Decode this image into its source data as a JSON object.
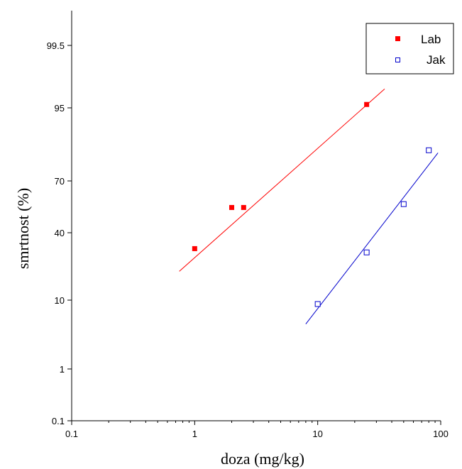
{
  "chart_data": {
    "type": "scatter",
    "title": "",
    "xlabel": "doza (mg/kg)",
    "ylabel": "smrtnost (%)",
    "x_scale": "log",
    "y_scale": "probit",
    "xlim": [
      0.1,
      100
    ],
    "ylim": [
      0.1,
      99.9
    ],
    "x_ticks": [
      {
        "value": 0.1,
        "label": "0.1"
      },
      {
        "value": 1,
        "label": "1"
      },
      {
        "value": 10,
        "label": "10"
      },
      {
        "value": 100,
        "label": "100"
      }
    ],
    "y_ticks": [
      {
        "value": 0.1,
        "label": "0.1"
      },
      {
        "value": 1,
        "label": "1"
      },
      {
        "value": 10,
        "label": "10"
      },
      {
        "value": 40,
        "label": "40"
      },
      {
        "value": 70,
        "label": "70"
      },
      {
        "value": 95,
        "label": "95"
      },
      {
        "value": 99.5,
        "label": "99.5"
      }
    ],
    "grid": false,
    "legend_position": "top-right",
    "series": [
      {
        "name": "Lab",
        "color": "#ff0000",
        "marker": "filled-square",
        "points": [
          [
            1.0,
            31
          ],
          [
            2.0,
            55
          ],
          [
            2.5,
            55
          ],
          [
            25,
            95.5
          ]
        ],
        "fit_line": [
          [
            0.75,
            20
          ],
          [
            35,
            97.3
          ]
        ]
      },
      {
        "name": "Jak",
        "color": "#0000cc",
        "marker": "open-square",
        "points": [
          [
            10,
            9
          ],
          [
            25,
            29
          ],
          [
            50,
            57
          ],
          [
            80,
            84
          ]
        ],
        "fit_line": [
          [
            8,
            5
          ],
          [
            95,
            83
          ]
        ]
      }
    ]
  }
}
